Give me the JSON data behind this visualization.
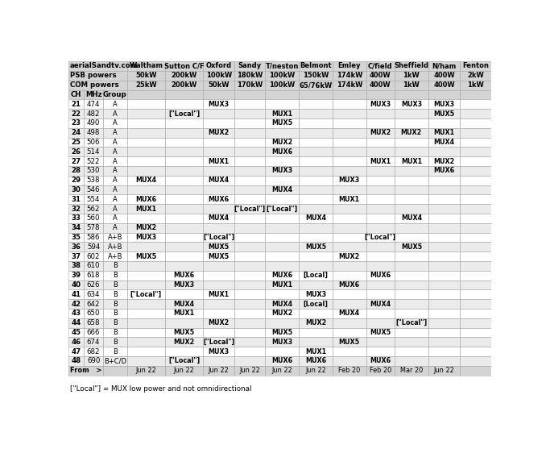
{
  "headers": [
    "aerialSandtv.com",
    "Waltham",
    "Sutton C/F",
    "Oxford",
    "Sandy",
    "T/neston",
    "Belmont",
    "Emley",
    "C/field",
    "Sheffield",
    "N/ham",
    "Fenton"
  ],
  "psb_powers": [
    "PSB powers",
    "50kW",
    "200kW",
    "100kW",
    "180kW",
    "100kW",
    "150kW",
    "174kW",
    "400W",
    "1kW",
    "400W",
    "2kW"
  ],
  "com_powers": [
    "COM powers",
    "25kW",
    "200kW",
    "50kW",
    "170kW",
    "100kW",
    "65/76kW",
    "174kW",
    "400W",
    "1kW",
    "400W",
    "1kW"
  ],
  "rows": [
    [
      "21",
      "474",
      "A",
      "",
      "",
      "MUX3",
      "",
      "",
      "",
      "",
      "MUX3",
      "MUX3",
      "MUX3"
    ],
    [
      "22",
      "482",
      "A",
      "",
      "[\"Local\"]",
      "",
      "",
      "MUX1",
      "",
      "",
      "",
      "",
      "MUX5"
    ],
    [
      "23",
      "490",
      "A",
      "",
      "",
      "",
      "",
      "MUX5",
      "",
      "",
      "",
      "",
      ""
    ],
    [
      "24",
      "498",
      "A",
      "",
      "",
      "MUX2",
      "",
      "",
      "",
      "",
      "MUX2",
      "MUX2",
      "MUX1"
    ],
    [
      "25",
      "506",
      "A",
      "",
      "",
      "",
      "",
      "MUX2",
      "",
      "",
      "",
      "",
      "MUX4"
    ],
    [
      "26",
      "514",
      "A",
      "",
      "",
      "",
      "",
      "MUX6",
      "",
      "",
      "",
      "",
      ""
    ],
    [
      "27",
      "522",
      "A",
      "",
      "",
      "MUX1",
      "",
      "",
      "",
      "",
      "MUX1",
      "MUX1",
      "MUX2"
    ],
    [
      "28",
      "530",
      "A",
      "",
      "",
      "",
      "",
      "MUX3",
      "",
      "",
      "",
      "",
      "MUX6"
    ],
    [
      "29",
      "538",
      "A",
      "MUX4",
      "",
      "MUX4",
      "",
      "",
      "",
      "MUX3",
      "",
      "",
      ""
    ],
    [
      "30",
      "546",
      "A",
      "",
      "",
      "",
      "",
      "MUX4",
      "",
      "",
      "",
      "",
      ""
    ],
    [
      "31",
      "554",
      "A",
      "MUX6",
      "",
      "MUX6",
      "",
      "",
      "",
      "MUX1",
      "",
      "",
      ""
    ],
    [
      "32",
      "562",
      "A",
      "MUX1",
      "",
      "",
      "[\"Local\"]",
      "[\"Local\"]",
      "",
      "",
      "",
      "",
      ""
    ],
    [
      "33",
      "560",
      "A",
      "",
      "",
      "MUX4",
      "",
      "",
      "MUX4",
      "",
      "",
      "MUX4",
      ""
    ],
    [
      "34",
      "578",
      "A",
      "MUX2",
      "",
      "",
      "",
      "",
      "",
      "",
      "",
      "",
      ""
    ],
    [
      "35",
      "586",
      "A+B",
      "MUX3",
      "",
      "[\"Local\"]",
      "",
      "",
      "",
      "",
      "[\"Local\"]",
      "",
      ""
    ],
    [
      "36",
      "594",
      "A+B",
      "",
      "",
      "MUX5",
      "",
      "",
      "MUX5",
      "",
      "",
      "MUX5",
      ""
    ],
    [
      "37",
      "602",
      "A+B",
      "MUX5",
      "",
      "MUX5",
      "",
      "",
      "",
      "MUX2",
      "",
      "",
      ""
    ],
    [
      "38",
      "610",
      "B",
      "",
      "",
      "",
      "",
      "",
      "",
      "",
      "",
      "",
      ""
    ],
    [
      "39",
      "618",
      "B",
      "",
      "MUX6",
      "",
      "",
      "MUX6",
      "[Local]",
      "",
      "MUX6",
      "",
      ""
    ],
    [
      "40",
      "626",
      "B",
      "",
      "MUX3",
      "",
      "",
      "MUX1",
      "",
      "MUX6",
      "",
      "",
      ""
    ],
    [
      "41",
      "634",
      "B",
      "[\"Local\"]",
      "",
      "MUX1",
      "",
      "",
      "MUX3",
      "",
      "",
      "",
      ""
    ],
    [
      "42",
      "642",
      "B",
      "",
      "MUX4",
      "",
      "",
      "MUX4",
      "[Local]",
      "",
      "MUX4",
      "",
      ""
    ],
    [
      "43",
      "650",
      "B",
      "",
      "MUX1",
      "",
      "",
      "MUX2",
      "",
      "MUX4",
      "",
      "",
      ""
    ],
    [
      "44",
      "658",
      "B",
      "",
      "",
      "MUX2",
      "",
      "",
      "MUX2",
      "",
      "",
      "[\"Local\"]",
      ""
    ],
    [
      "45",
      "666",
      "B",
      "",
      "MUX5",
      "",
      "",
      "MUX5",
      "",
      "",
      "MUX5",
      "",
      ""
    ],
    [
      "46",
      "674",
      "B",
      "",
      "MUX2",
      "[\"Local\"]",
      "",
      "MUX3",
      "",
      "MUX5",
      "",
      "",
      ""
    ],
    [
      "47",
      "682",
      "B",
      "",
      "",
      "MUX3",
      "",
      "",
      "MUX1",
      "",
      "",
      "",
      ""
    ],
    [
      "48",
      "690",
      "B+C/D",
      "",
      "[\"Local\"]",
      "",
      "",
      "MUX6",
      "MUX6",
      "",
      "MUX6",
      "",
      ""
    ]
  ],
  "from_row": [
    "From   >",
    "Jun 22",
    "Jun 22",
    "Jun 22",
    "Jun 22",
    "Jun 22",
    "Jun 22",
    "Feb 20",
    "Feb 20",
    "Mar 20",
    "Jun 22",
    ""
  ],
  "footer": "[\"Local\"] = MUX low power and not omnidirectional",
  "bg_color": "#ffffff",
  "hdr_bg": "#d4d4d4",
  "alt_bg1": "#ffffff",
  "alt_bg2": "#ebebeb",
  "grid_color": "#b0b0b0",
  "text_color": "#000000"
}
